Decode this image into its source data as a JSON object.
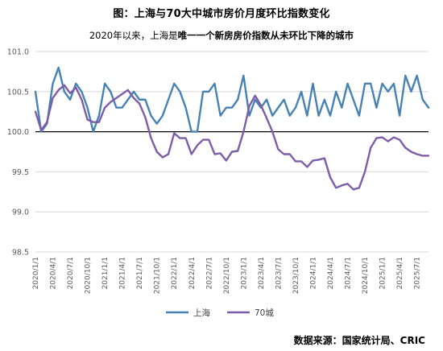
{
  "title": "图：上海与70大中城市房价月度环比指数变化",
  "subtitle": {
    "part1": "2020年以来，上海是",
    "part2": "唯一一个新房房价指数",
    "part3": "从未环比下降的城市"
  },
  "source": "数据来源：国家统计局、CRIC",
  "colors": {
    "shanghai": "#4682B4",
    "city70": "#7D5CA8",
    "grid": "#d9d9d9",
    "baseline": "#000000"
  },
  "chart_data": {
    "type": "line",
    "title": "图：上海与70大中城市房价月度环比指数变化",
    "ylim": [
      98.5,
      101.0
    ],
    "yticks": [
      "98.5",
      "99.0",
      "99.5",
      "100.0",
      "100.5",
      "101.0"
    ],
    "xlabel": "",
    "ylabel": "",
    "grid": true,
    "legend": "bottom",
    "xticks": [
      "2020/1/1",
      "2020/4/1",
      "2020/7/1",
      "2020/10/1",
      "2021/1/1",
      "2021/4/1",
      "2021/7/1",
      "2021/10/1",
      "2022/1/1",
      "2022/4/1",
      "2022/7/1",
      "2022/10/1",
      "2023/1/1",
      "2023/4/1",
      "2023/7/1",
      "2023/10/1",
      "2024/1/1",
      "2024/4/1",
      "2024/7/1",
      "2024/10/1",
      "2025/1/1",
      "2025/4/1",
      "2025/7/1"
    ],
    "x_start": "2020/1",
    "x_end": "2025/7",
    "series": [
      {
        "name": "上海",
        "values": [
          100.5,
          100.0,
          100.1,
          100.6,
          100.8,
          100.5,
          100.4,
          100.6,
          100.5,
          100.3,
          100.0,
          100.2,
          100.6,
          100.5,
          100.3,
          100.3,
          100.4,
          100.5,
          100.4,
          100.4,
          100.2,
          100.1,
          100.2,
          100.4,
          100.6,
          100.5,
          100.3,
          100.0,
          100.0,
          100.5,
          100.5,
          100.6,
          100.2,
          100.3,
          100.3,
          100.4,
          100.7,
          100.2,
          100.4,
          100.3,
          100.4,
          100.2,
          100.3,
          100.4,
          100.2,
          100.3,
          100.5,
          100.2,
          100.6,
          100.2,
          100.4,
          100.2,
          100.5,
          100.3,
          100.6,
          100.4,
          100.2,
          100.6,
          100.6,
          100.3,
          100.6,
          100.5,
          100.6,
          100.2,
          100.7,
          100.5,
          100.7,
          100.4,
          100.3
        ]
      },
      {
        "name": "70城",
        "values": [
          100.25,
          100.02,
          100.12,
          100.42,
          100.52,
          100.58,
          100.48,
          100.55,
          100.4,
          100.15,
          100.12,
          100.12,
          100.3,
          100.37,
          100.42,
          100.47,
          100.52,
          100.42,
          100.35,
          100.18,
          99.92,
          99.75,
          99.68,
          99.72,
          99.98,
          99.92,
          99.92,
          99.72,
          99.83,
          99.9,
          99.9,
          99.72,
          99.73,
          99.64,
          99.75,
          99.76,
          100.0,
          100.32,
          100.45,
          100.33,
          100.17,
          100.0,
          99.78,
          99.72,
          99.72,
          99.63,
          99.63,
          99.56,
          99.64,
          99.65,
          99.67,
          99.43,
          99.3,
          99.33,
          99.35,
          99.28,
          99.3,
          99.5,
          99.8,
          99.92,
          99.93,
          99.88,
          99.93,
          99.9,
          99.8,
          99.75,
          99.72,
          99.7,
          99.7
        ]
      }
    ]
  }
}
